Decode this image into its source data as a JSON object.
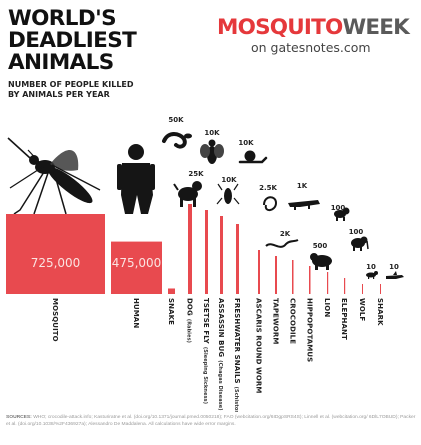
{
  "header": {
    "title_lines": [
      "WORLD'S",
      "DEADLIEST",
      "ANIMALS"
    ],
    "subtitle_lines": [
      "NUMBER OF PEOPLE KILLED",
      "BY ANIMALS PER YEAR"
    ]
  },
  "brand": {
    "logo_a": "MOSQUITO",
    "logo_b": "WEEK",
    "site": "on gatesnotes.com"
  },
  "sources": {
    "label": "SOURCES:",
    "text": "WHO; crocodile-attack.info; Kasturiratne et al. (doi.org/10.1371/journal.pmed.0050218); FAO (webcitation.org/6IDgpSRS4S); Linnell et al. (webcitation.org/ 6DlL7OBUD); Packer et al. (doi.org/10.1038/%2F436927a); Alessandro De Maddalena. All calculations have wide error margins."
  },
  "colors": {
    "bar": "#e84a4f",
    "bar_text": "#fbe3e1",
    "silhouette": "#151515"
  },
  "chart_data": {
    "type": "bar",
    "title": "WORLD'S DEADLIEST ANIMALS",
    "subtitle": "NUMBER OF PEOPLE KILLED BY ANIMALS PER YEAR",
    "categories": [
      {
        "name": "MOSQUITO",
        "sub": "",
        "label": "725,000",
        "value": 725000,
        "icon": "mosquito-icon"
      },
      {
        "name": "HUMAN",
        "sub": "",
        "label": "475,000",
        "value": 475000,
        "icon": "human-icon"
      },
      {
        "name": "SNAKE",
        "sub": "",
        "label": "50K",
        "value": 50000,
        "icon": "snake-icon"
      },
      {
        "name": "DOG",
        "sub": "(Rabies)",
        "label": "25K",
        "value": 25000,
        "icon": "dog-icon"
      },
      {
        "name": "TSETSE FLY",
        "sub": "(Sleeping Sickness)",
        "label": "10K",
        "value": 10000,
        "icon": "tsetse-fly-icon"
      },
      {
        "name": "ASSASSIN BUG",
        "sub": "(Chagas Disease)",
        "label": "10K",
        "value": 10000,
        "icon": "assassin-bug-icon"
      },
      {
        "name": "FRESHWATER SNAILS",
        "sub": "(Schistosomiasis)",
        "label": "10K",
        "value": 10000,
        "icon": "snail-icon"
      },
      {
        "name": "ASCARIS ROUND WORM",
        "sub": "",
        "label": "2.5K",
        "value": 2500,
        "icon": "roundworm-icon"
      },
      {
        "name": "TAPEWORM",
        "sub": "",
        "label": "2K",
        "value": 2000,
        "icon": "tapeworm-icon"
      },
      {
        "name": "CROCODILE",
        "sub": "",
        "label": "1K",
        "value": 1000,
        "icon": "crocodile-icon"
      },
      {
        "name": "HIPPOPOTAMUS",
        "sub": "",
        "label": "500",
        "value": 500,
        "icon": "hippopotamus-icon"
      },
      {
        "name": "LION",
        "sub": "",
        "label": "100",
        "value": 100,
        "icon": "lion-icon"
      },
      {
        "name": "ELEPHANT",
        "sub": "",
        "label": "100",
        "value": 100,
        "icon": "elephant-icon"
      },
      {
        "name": "WOLF",
        "sub": "",
        "label": "10",
        "value": 10,
        "icon": "wolf-icon"
      },
      {
        "name": "SHARK",
        "sub": "",
        "label": "10",
        "value": 10,
        "icon": "shark-icon"
      }
    ]
  }
}
